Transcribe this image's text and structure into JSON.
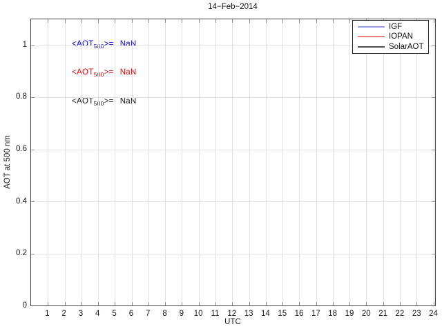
{
  "title": "14−Feb−2014",
  "axes": {
    "xlabel": "UTC",
    "ylabel": "AOT at 500 nm",
    "x_ticks": [
      "1",
      "2",
      "3",
      "4",
      "5",
      "6",
      "7",
      "8",
      "9",
      "10",
      "11",
      "12",
      "13",
      "14",
      "15",
      "16",
      "17",
      "18",
      "19",
      "20",
      "21",
      "22",
      "23",
      "24"
    ],
    "y_ticks": [
      "0",
      "0.2",
      "0.4",
      "0.6",
      "0.8",
      "1"
    ],
    "xlim": [
      0,
      24.1
    ],
    "ylim": [
      0,
      1.1
    ]
  },
  "annotations": [
    {
      "prefix": "<AOT",
      "sub": "500",
      "suffix": ">=",
      "value": "NaN",
      "color": "#0000ee"
    },
    {
      "prefix": "<AOT",
      "sub": "500",
      "suffix": ">=",
      "value": "NaN",
      "color": "#ee0000"
    },
    {
      "prefix": "<AOT",
      "sub": "500",
      "suffix": ">=",
      "value": "NaN",
      "color": "#141414"
    }
  ],
  "legend": {
    "items": [
      {
        "label": "IGF",
        "line_color": "#9b9bec"
      },
      {
        "label": "IOPAN",
        "line_color": "#ec7f7f"
      },
      {
        "label": "SolarAOT",
        "line_color": "#4d4d4d"
      }
    ]
  },
  "colors": {
    "grid": "#e2e2e2",
    "axis": "#404040",
    "tick": "#8c8c8c"
  },
  "chart_data": {
    "type": "line",
    "title": "14−Feb−2014",
    "xlabel": "UTC",
    "ylabel": "AOT at 500 nm",
    "xlim": [
      0,
      24.1
    ],
    "ylim": [
      0,
      1.1
    ],
    "x_ticks": [
      1,
      2,
      3,
      4,
      5,
      6,
      7,
      8,
      9,
      10,
      11,
      12,
      13,
      14,
      15,
      16,
      17,
      18,
      19,
      20,
      21,
      22,
      23,
      24
    ],
    "y_ticks": [
      0,
      0.2,
      0.4,
      0.6,
      0.8,
      1
    ],
    "grid": true,
    "legend_position": "top-right",
    "series": [
      {
        "name": "IGF",
        "color": "#0000ee",
        "mean_aot_500": "NaN",
        "x": [],
        "y": []
      },
      {
        "name": "IOPAN",
        "color": "#ee0000",
        "mean_aot_500": "NaN",
        "x": [],
        "y": []
      },
      {
        "name": "SolarAOT",
        "color": "#141414",
        "mean_aot_500": "NaN",
        "x": [],
        "y": []
      }
    ],
    "note": "empty plot: all series contain no valid data (NaN means)"
  }
}
